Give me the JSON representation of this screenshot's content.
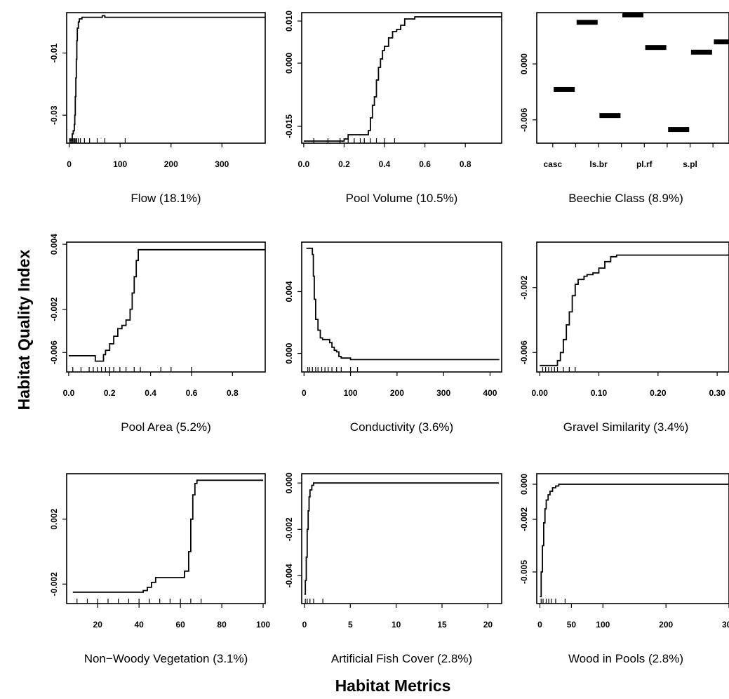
{
  "figure": {
    "ylabel": "Habitat Quality Index",
    "xlabel": "Habitat Metrics"
  },
  "chart_data": [
    {
      "type": "line",
      "xlabel": "Flow (18.1%)",
      "xlim": [
        -5,
        385
      ],
      "ylim": [
        -0.039,
        0.003
      ],
      "xticks": [
        0,
        100,
        200,
        300
      ],
      "xtick_labels": [
        "0",
        "100",
        "200",
        "300"
      ],
      "yticks": [
        -0.01,
        -0.03
      ],
      "ytick_labels": [
        "-0.01",
        "-0.03"
      ],
      "x": [
        0,
        4,
        6,
        8,
        10,
        11,
        12,
        13,
        14,
        15,
        16,
        18,
        20,
        25,
        40,
        60,
        65,
        70,
        385
      ],
      "y": [
        -0.038,
        -0.038,
        -0.036,
        -0.035,
        -0.033,
        -0.03,
        -0.024,
        -0.018,
        -0.012,
        -0.006,
        -0.002,
        0.0,
        0.001,
        0.0015,
        0.0015,
        0.0015,
        0.002,
        0.0015,
        0.0015
      ],
      "rug": [
        1,
        3,
        5,
        7,
        9,
        11,
        13,
        15,
        18,
        22,
        30,
        40,
        55,
        70,
        110
      ]
    },
    {
      "type": "line",
      "xlabel": "Pool Volume (10.5%)",
      "xlim": [
        -0.01,
        0.98
      ],
      "ylim": [
        -0.019,
        0.012
      ],
      "xticks": [
        0.0,
        0.2,
        0.4,
        0.6,
        0.8,
        1.0
      ],
      "xtick_labels": [
        "0.0",
        "0.2",
        "0.4",
        "0.6",
        "0.8",
        "1.0"
      ],
      "yticks": [
        0.01,
        0.0,
        -0.015
      ],
      "ytick_labels": [
        "0.010",
        "0.000",
        "-0.015"
      ],
      "x": [
        0.0,
        0.18,
        0.2,
        0.22,
        0.3,
        0.32,
        0.33,
        0.34,
        0.35,
        0.36,
        0.37,
        0.38,
        0.39,
        0.4,
        0.42,
        0.44,
        0.46,
        0.48,
        0.5,
        0.55,
        0.98
      ],
      "y": [
        -0.0185,
        -0.0185,
        -0.018,
        -0.017,
        -0.017,
        -0.016,
        -0.013,
        -0.01,
        -0.008,
        -0.004,
        -0.001,
        0.001,
        0.003,
        0.004,
        0.006,
        0.0075,
        0.008,
        0.009,
        0.0105,
        0.011,
        0.011
      ],
      "rug": [
        0.05,
        0.12,
        0.18,
        0.22,
        0.25,
        0.28,
        0.3,
        0.33,
        0.36,
        0.4,
        0.45
      ]
    },
    {
      "type": "bar",
      "xlabel": "Beechie Class (8.9%)",
      "categories": [
        "casc",
        "",
        "ls.br",
        "",
        "pl.rf",
        "",
        "s.pl",
        ""
      ],
      "xtick_labels": [
        "casc",
        "ls.br",
        "pl.rf",
        "s.pl"
      ],
      "ylim": [
        -0.0085,
        0.0055
      ],
      "yticks": [
        0.0,
        -0.006
      ],
      "ytick_labels": [
        "0.000",
        "-0.006"
      ],
      "values": [
        -0.0027,
        0.0045,
        -0.0055,
        0.0053,
        0.0018,
        -0.007,
        0.0013,
        0.0024
      ]
    },
    {
      "type": "line",
      "xlabel": "Pool Area (5.2%)",
      "xlim": [
        -0.01,
        0.96
      ],
      "ylim": [
        -0.0078,
        0.0042
      ],
      "xticks": [
        0.0,
        0.2,
        0.4,
        0.6,
        0.8
      ],
      "xtick_labels": [
        "0.0",
        "0.2",
        "0.4",
        "0.6",
        "0.8"
      ],
      "yticks": [
        0.004,
        -0.002,
        -0.006
      ],
      "ytick_labels": [
        "0.004",
        "-0.002",
        "-0.006"
      ],
      "x": [
        0.0,
        0.1,
        0.13,
        0.15,
        0.17,
        0.18,
        0.2,
        0.22,
        0.24,
        0.26,
        0.28,
        0.3,
        0.31,
        0.32,
        0.33,
        0.34,
        0.96
      ],
      "y": [
        -0.0063,
        -0.0063,
        -0.0068,
        -0.0068,
        -0.0062,
        -0.0058,
        -0.0052,
        -0.0045,
        -0.0038,
        -0.0035,
        -0.003,
        -0.002,
        -0.0005,
        0.001,
        0.0025,
        0.0035,
        0.0035
      ],
      "rug": [
        0.02,
        0.06,
        0.1,
        0.12,
        0.14,
        0.16,
        0.18,
        0.2,
        0.22,
        0.25,
        0.28,
        0.32,
        0.35,
        0.45,
        0.5,
        0.6
      ]
    },
    {
      "type": "line",
      "xlabel": "Conductivity (3.6%)",
      "xlim": [
        -5,
        425
      ],
      "ylim": [
        -0.0012,
        0.0072
      ],
      "xticks": [
        0,
        100,
        200,
        300,
        400
      ],
      "xtick_labels": [
        "0",
        "100",
        "200",
        "300",
        "400"
      ],
      "yticks": [
        0.004,
        0.0
      ],
      "ytick_labels": [
        "0.004",
        "0.000"
      ],
      "x": [
        5,
        15,
        18,
        20,
        22,
        25,
        30,
        35,
        40,
        50,
        55,
        60,
        65,
        70,
        75,
        80,
        100,
        420
      ],
      "y": [
        0.0068,
        0.0068,
        0.0064,
        0.005,
        0.0035,
        0.0022,
        0.0015,
        0.001,
        0.0009,
        0.0009,
        0.0007,
        0.0004,
        0.0002,
        0.0001,
        -0.0002,
        -0.0003,
        -0.0004,
        -0.0004
      ],
      "rug": [
        8,
        12,
        18,
        25,
        30,
        38,
        45,
        52,
        60,
        70,
        80,
        100,
        115
      ]
    },
    {
      "type": "line",
      "xlabel": "Gravel Similarity (3.4%)",
      "xlim": [
        -0.005,
        0.32
      ],
      "ylim": [
        -0.0072,
        0.0008
      ],
      "xticks": [
        0.0,
        0.1,
        0.2,
        0.3
      ],
      "xtick_labels": [
        "0.00",
        "0.10",
        "0.20",
        "0.30"
      ],
      "yticks": [
        -0.002,
        -0.006
      ],
      "ytick_labels": [
        "-0.002",
        "-0.006"
      ],
      "x": [
        0.0,
        0.02,
        0.03,
        0.035,
        0.04,
        0.045,
        0.05,
        0.055,
        0.06,
        0.065,
        0.07,
        0.075,
        0.08,
        0.09,
        0.1,
        0.11,
        0.12,
        0.13,
        0.32
      ],
      "y": [
        -0.0068,
        -0.0068,
        -0.0065,
        -0.006,
        -0.0052,
        -0.0043,
        -0.0035,
        -0.0025,
        -0.0018,
        -0.0015,
        -0.0015,
        -0.0013,
        -0.0012,
        -0.0011,
        -0.0008,
        -0.0004,
        -0.0001,
        0.0,
        0.0
      ],
      "rug": [
        0.005,
        0.01,
        0.015,
        0.02,
        0.025,
        0.03,
        0.04,
        0.05,
        0.06
      ]
    },
    {
      "type": "line",
      "xlabel": "Non−Woody Vegetation (3.1%)",
      "xlim": [
        5,
        101
      ],
      "ylim": [
        -0.0032,
        0.0048
      ],
      "xticks": [
        20,
        40,
        60,
        80,
        100
      ],
      "xtick_labels": [
        "20",
        "40",
        "60",
        "80",
        "100"
      ],
      "yticks": [
        0.002,
        -0.002
      ],
      "ytick_labels": [
        "0.002",
        "-0.002"
      ],
      "x": [
        8,
        40,
        42,
        44,
        46,
        48,
        60,
        62,
        64,
        65,
        66,
        67,
        68,
        100
      ],
      "y": [
        -0.0025,
        -0.0025,
        -0.0024,
        -0.0022,
        -0.0019,
        -0.0016,
        -0.0016,
        -0.0012,
        0.0,
        0.002,
        0.0035,
        0.0042,
        0.0044,
        0.0044
      ],
      "rug": [
        10,
        15,
        20,
        25,
        30,
        35,
        40,
        45,
        50,
        55,
        60,
        65,
        70
      ]
    },
    {
      "type": "line",
      "xlabel": "Artificial Fish Cover (2.8%)",
      "xlim": [
        -0.3,
        21.5
      ],
      "ylim": [
        -0.0052,
        0.0004
      ],
      "xticks": [
        0,
        5,
        10,
        15,
        20
      ],
      "xtick_labels": [
        "0",
        "5",
        "10",
        "15",
        "20"
      ],
      "yticks": [
        0.0,
        -0.002,
        -0.004
      ],
      "ytick_labels": [
        "0.000",
        "-0.002",
        "-0.004"
      ],
      "x": [
        0.0,
        0.1,
        0.2,
        0.3,
        0.4,
        0.5,
        0.6,
        0.8,
        1.0,
        1.5,
        21.2
      ],
      "y": [
        -0.0048,
        -0.0042,
        -0.0032,
        -0.002,
        -0.0012,
        -0.0006,
        -0.0003,
        -0.0001,
        0.0,
        0.0,
        0.0
      ],
      "rug": [
        0.1,
        0.3,
        0.6,
        1.0,
        2.0
      ]
    },
    {
      "type": "line",
      "xlabel": "Wood in Pools (2.8%)",
      "xlim": [
        -5,
        300
      ],
      "ylim": [
        -0.0068,
        0.0006
      ],
      "xticks": [
        0,
        50,
        100,
        200,
        300
      ],
      "xtick_labels": [
        "0",
        "50",
        "100",
        "200",
        "300"
      ],
      "yticks": [
        0.0,
        -0.002,
        -0.005
      ],
      "ytick_labels": [
        "0.000",
        "-0.002",
        "-0.005"
      ],
      "x": [
        0,
        2,
        4,
        6,
        8,
        10,
        13,
        16,
        20,
        25,
        30,
        35,
        300
      ],
      "y": [
        -0.0064,
        -0.005,
        -0.0035,
        -0.0022,
        -0.0014,
        -0.0009,
        -0.0006,
        -0.0004,
        -0.0002,
        -0.0001,
        0.0,
        0.0,
        0.0
      ],
      "rug": [
        2,
        5,
        10,
        14,
        18,
        25,
        40
      ]
    }
  ]
}
